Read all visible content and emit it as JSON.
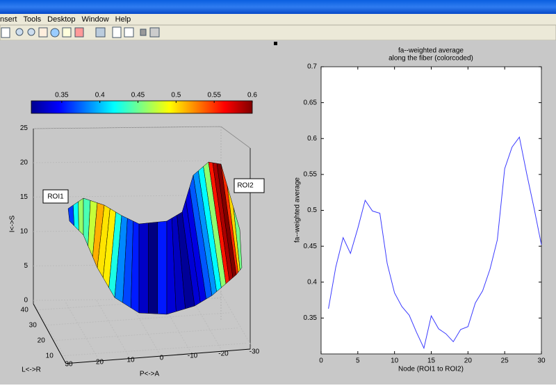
{
  "menu": [
    "nsert",
    "Tools",
    "Desktop",
    "Window",
    "Help"
  ],
  "chart_data": {
    "type": "line",
    "title": [
      "fa--weighted average",
      "along the fiber (colorcoded)"
    ],
    "x_label": "Node (ROI1 to ROI2)",
    "y_label": "fa--weighted average",
    "x": [
      1,
      2,
      3,
      4,
      5,
      6,
      7,
      8,
      9,
      10,
      11,
      12,
      13,
      14,
      15,
      16,
      17,
      18,
      19,
      20,
      21,
      22,
      23,
      24,
      25,
      26,
      27,
      28,
      29,
      30
    ],
    "series": [
      {
        "color": "#3a3aff",
        "values": [
          0.363,
          0.421,
          0.462,
          0.44,
          0.475,
          0.514,
          0.499,
          0.496,
          0.426,
          0.385,
          0.366,
          0.354,
          0.33,
          0.308,
          0.353,
          0.335,
          0.328,
          0.317,
          0.334,
          0.338,
          0.371,
          0.388,
          0.418,
          0.459,
          0.558,
          0.588,
          0.602,
          0.551,
          0.503,
          0.452
        ]
      }
    ],
    "xlim": [
      0,
      30
    ],
    "xticks": [
      0,
      5,
      10,
      15,
      20,
      25,
      30
    ],
    "ylim": [
      0.3,
      0.7
    ],
    "yticks": [
      0.35,
      0.4,
      0.45,
      0.5,
      0.55,
      0.6,
      0.65,
      0.7
    ]
  },
  "surface_plot": {
    "colorbar": {
      "lim": [
        0.31,
        0.6
      ],
      "ticks": [
        0.35,
        0.4,
        0.45,
        0.5,
        0.55,
        0.6
      ]
    },
    "z_label": "I<->S",
    "z_ticks": [
      0,
      5,
      10,
      15,
      20,
      25
    ],
    "y_label": "L<->R",
    "y_ticks": [
      40,
      30,
      20,
      10
    ],
    "x_label": "P<->A",
    "x_ticks": [
      30,
      20,
      10,
      0,
      -10,
      -20,
      -30
    ],
    "annotations": [
      "ROI1",
      "ROI2"
    ]
  }
}
